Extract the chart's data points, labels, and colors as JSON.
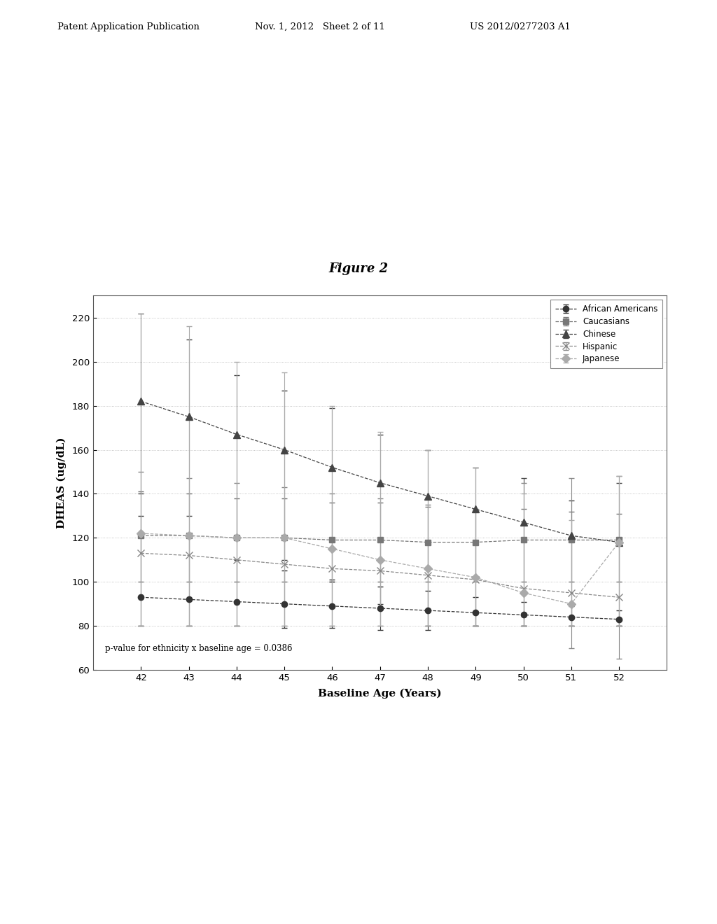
{
  "title": "Figure 2",
  "xlabel": "Baseline Age (Years)",
  "ylabel": "DHEAS (ug/dL)",
  "annotation": "p-value for ethnicity x baseline age = 0.0386",
  "x": [
    42,
    43,
    44,
    45,
    46,
    47,
    48,
    49,
    50,
    51,
    52
  ],
  "ylim": [
    60,
    230
  ],
  "yticks": [
    60,
    80,
    100,
    120,
    140,
    160,
    180,
    200,
    220
  ],
  "series_order": [
    "African Americans",
    "Caucasians",
    "Chinese",
    "Hispanic",
    "Japanese"
  ],
  "series": {
    "African Americans": {
      "y": [
        93,
        92,
        91,
        90,
        89,
        88,
        87,
        86,
        85,
        84,
        83
      ],
      "err_up": [
        37,
        28,
        19,
        15,
        12,
        10,
        9,
        7,
        6,
        5,
        4
      ],
      "err_dn": [
        13,
        12,
        11,
        11,
        10,
        10,
        9,
        6,
        5,
        4,
        3
      ],
      "marker": "o",
      "color": "#333333",
      "ms": 6
    },
    "Caucasians": {
      "y": [
        121,
        121,
        120,
        120,
        119,
        119,
        118,
        118,
        119,
        119,
        119
      ],
      "err_up": [
        20,
        19,
        18,
        18,
        17,
        17,
        16,
        15,
        14,
        13,
        12
      ],
      "err_dn": [
        21,
        21,
        20,
        20,
        19,
        19,
        18,
        18,
        19,
        19,
        19
      ],
      "marker": "s",
      "color": "#777777",
      "ms": 6
    },
    "Chinese": {
      "y": [
        182,
        175,
        167,
        160,
        152,
        145,
        139,
        133,
        127,
        121,
        118
      ],
      "err_up": [
        40,
        35,
        27,
        27,
        27,
        22,
        21,
        19,
        20,
        16,
        27
      ],
      "err_dn": [
        42,
        45,
        47,
        50,
        52,
        55,
        59,
        53,
        47,
        41,
        38
      ],
      "marker": "^",
      "color": "#444444",
      "ms": 7
    },
    "Hispanic": {
      "y": [
        113,
        112,
        110,
        108,
        106,
        105,
        103,
        101,
        97,
        95,
        93
      ],
      "err_up": [
        37,
        35,
        35,
        35,
        34,
        33,
        32,
        31,
        48,
        52,
        55
      ],
      "err_dn": [
        33,
        32,
        30,
        28,
        26,
        25,
        23,
        21,
        17,
        25,
        28
      ],
      "marker": "x",
      "color": "#888888",
      "ms": 7
    },
    "Japanese": {
      "y": [
        122,
        121,
        120,
        120,
        115,
        110,
        106,
        102,
        95,
        90,
        118
      ],
      "err_up": [
        100,
        95,
        80,
        75,
        65,
        58,
        54,
        50,
        45,
        38,
        30
      ],
      "err_dn": [
        42,
        41,
        40,
        40,
        35,
        30,
        26,
        22,
        15,
        10,
        38
      ],
      "marker": "D",
      "color": "#aaaaaa",
      "ms": 6
    }
  },
  "header_left": "Patent Application Publication",
  "header_mid": "Nov. 1, 2012   Sheet 2 of 11",
  "header_right": "US 2012/0277203 A1",
  "bg_color": "#ffffff"
}
